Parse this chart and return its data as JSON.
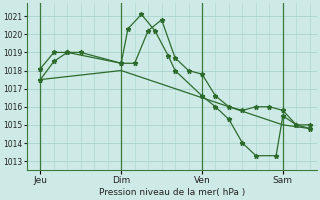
{
  "background_color": "#ceeae6",
  "grid_color": "#aad4ce",
  "line_color": "#2d6b2d",
  "ylim": [
    1012.5,
    1021.7
  ],
  "yticks": [
    1013,
    1014,
    1015,
    1016,
    1017,
    1018,
    1019,
    1020,
    1021
  ],
  "xlabel": "Pression niveau de la mer( hPa )",
  "xtick_labels": [
    "Jeu",
    "Dim",
    "Ven",
    "Sam"
  ],
  "xtick_positions": [
    8,
    56,
    104,
    152
  ],
  "vline_positions": [
    8,
    56,
    104,
    152
  ],
  "xlim": [
    0,
    172
  ],
  "line1_x": [
    8,
    16,
    24,
    32,
    56,
    64,
    72,
    80,
    88,
    96,
    104,
    112,
    120,
    128,
    136,
    144,
    152,
    160,
    168
  ],
  "line1_y": [
    1017.5,
    1018.5,
    1019.0,
    1019.0,
    1018.4,
    1018.4,
    1020.2,
    1020.8,
    1018.7,
    1018.0,
    1017.8,
    1016.6,
    1016.0,
    1015.8,
    1016.0,
    1016.0,
    1015.8,
    1015.0,
    1015.0
  ],
  "line2_x": [
    8,
    16,
    24,
    56,
    60,
    68,
    76,
    84,
    88,
    104,
    112,
    120,
    128,
    136,
    148,
    152,
    160,
    168
  ],
  "line2_y": [
    1018.1,
    1019.0,
    1019.0,
    1018.4,
    1020.3,
    1021.1,
    1020.2,
    1018.8,
    1018.0,
    1016.6,
    1016.0,
    1015.3,
    1014.0,
    1013.3,
    1013.3,
    1015.5,
    1015.0,
    1014.8
  ],
  "line3_x": [
    8,
    56,
    104,
    152,
    168
  ],
  "line3_y": [
    1017.5,
    1018.0,
    1016.5,
    1015.0,
    1014.8
  ]
}
